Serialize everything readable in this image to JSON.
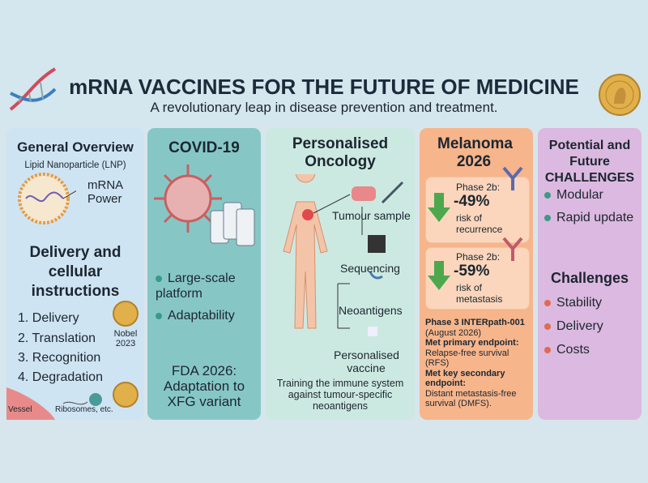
{
  "header": {
    "title": "mRNA VACCINES FOR THE FUTURE OF MEDICINE",
    "subtitle": "A revolutionary leap in disease prevention and treatment."
  },
  "overview": {
    "title": "General Overview",
    "lnp_label": "Lipid Nanoparticle (LNP)",
    "mrna_label": "mRNA Power",
    "section": "Delivery and cellular instructions",
    "steps": [
      "1. Delivery",
      "2. Translation",
      "3. Recognition",
      "4. Degradation"
    ],
    "nobel": "Nobel 2023",
    "vessel": "Vessel",
    "ribosomes": "Ribosomes, etc."
  },
  "covid": {
    "title": "COVID-19",
    "bullets": [
      "Large-scale platform",
      "Adaptability"
    ],
    "note": "FDA 2026: Adaptation to XFG variant"
  },
  "oncology": {
    "title": "Personalised Oncology",
    "steps": [
      "Tumour sample",
      "Sequencing",
      "Neoantigens",
      "Personalised vaccine"
    ],
    "caption": "Training the immune system against tumour-specific neoantigens"
  },
  "melanoma": {
    "title": "Melanoma 2026",
    "results": [
      {
        "phase": "Phase 2b:",
        "value": "-49%",
        "label": "risk of recurrence"
      },
      {
        "phase": "Phase 2b:",
        "value": "-59%",
        "label": "risk of metastasis"
      }
    ],
    "trial": "Phase 3 INTERpath-001",
    "date": "(August 2026)",
    "primary_heading": "Met primary endpoint:",
    "primary": "Relapse-free survival (RFS)",
    "secondary_heading": "Met key secondary endpoint:",
    "secondary": "Distant metastasis-free survival (DMFS)."
  },
  "future": {
    "title": "Potential and Future CHALLENGES",
    "bullets": [
      "Modular",
      "Rapid update"
    ],
    "heading": "Challenges",
    "challenges": [
      "Stability",
      "Delivery",
      "Costs"
    ]
  }
}
